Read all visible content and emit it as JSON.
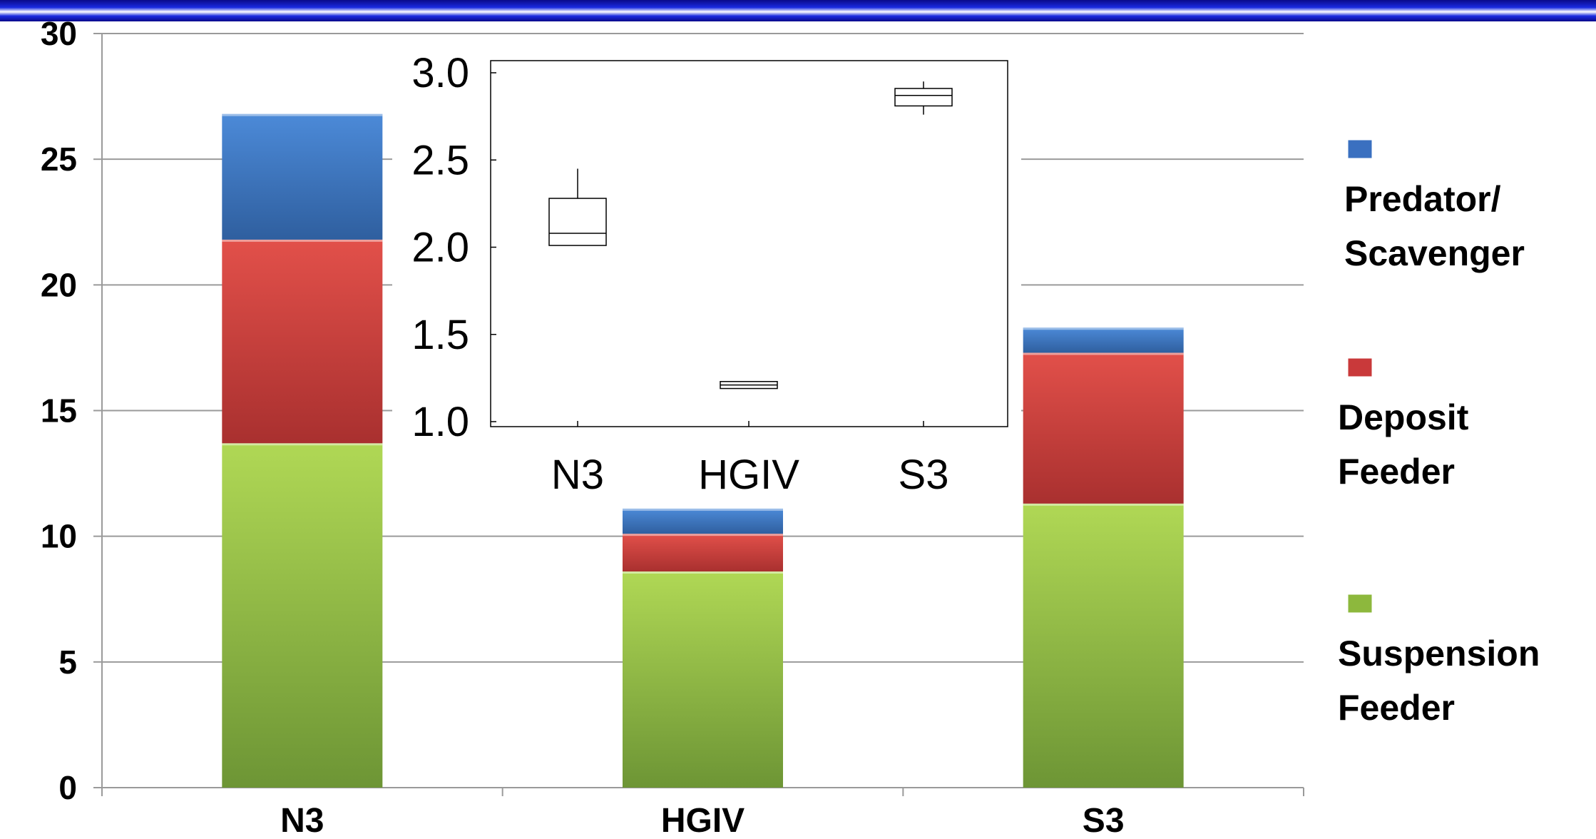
{
  "chart_data": [
    {
      "type": "bar",
      "stacked": true,
      "categories": [
        "N3",
        "HGIV",
        "S3"
      ],
      "series": [
        {
          "name": "Suspension Feeder",
          "values": [
            13.7,
            8.6,
            11.3
          ],
          "color": "#8db83d"
        },
        {
          "name": "Deposit Feeder",
          "values": [
            8.1,
            1.5,
            6.0
          ],
          "color": "#c9393a"
        },
        {
          "name": "Predator/ Scavenger",
          "values": [
            5.0,
            1.0,
            1.0
          ],
          "color": "#3a70c0"
        }
      ],
      "ylim": [
        0,
        30
      ],
      "yticks": [
        "0",
        "5",
        "10",
        "15",
        "20",
        "25",
        "30"
      ],
      "grid": true,
      "legend": "right",
      "legend_entries": [
        {
          "lines": [
            "Predator/",
            "Scavenger"
          ],
          "color": "#3a70c0"
        },
        {
          "lines": [
            "Deposit",
            "Feeder"
          ],
          "color": "#c9393a"
        },
        {
          "lines": [
            "Suspension",
            "Feeder"
          ],
          "color": "#8db83d"
        }
      ]
    },
    {
      "type": "boxplot",
      "categories": [
        "N3",
        "HGIV",
        "S3"
      ],
      "boxes": [
        {
          "min": 2.01,
          "q1": 2.01,
          "median": 2.08,
          "q3": 2.28,
          "max": 2.45
        },
        {
          "min": 1.19,
          "q1": 1.19,
          "median": 1.21,
          "q3": 1.23,
          "max": 1.23
        },
        {
          "min": 2.76,
          "q1": 2.81,
          "median": 2.87,
          "q3": 2.91,
          "max": 2.95
        }
      ],
      "ylim": [
        1.0,
        3.0
      ],
      "yticks": [
        "1.0",
        "1.5",
        "2.0",
        "2.5",
        "3.0"
      ],
      "grid": false
    }
  ]
}
